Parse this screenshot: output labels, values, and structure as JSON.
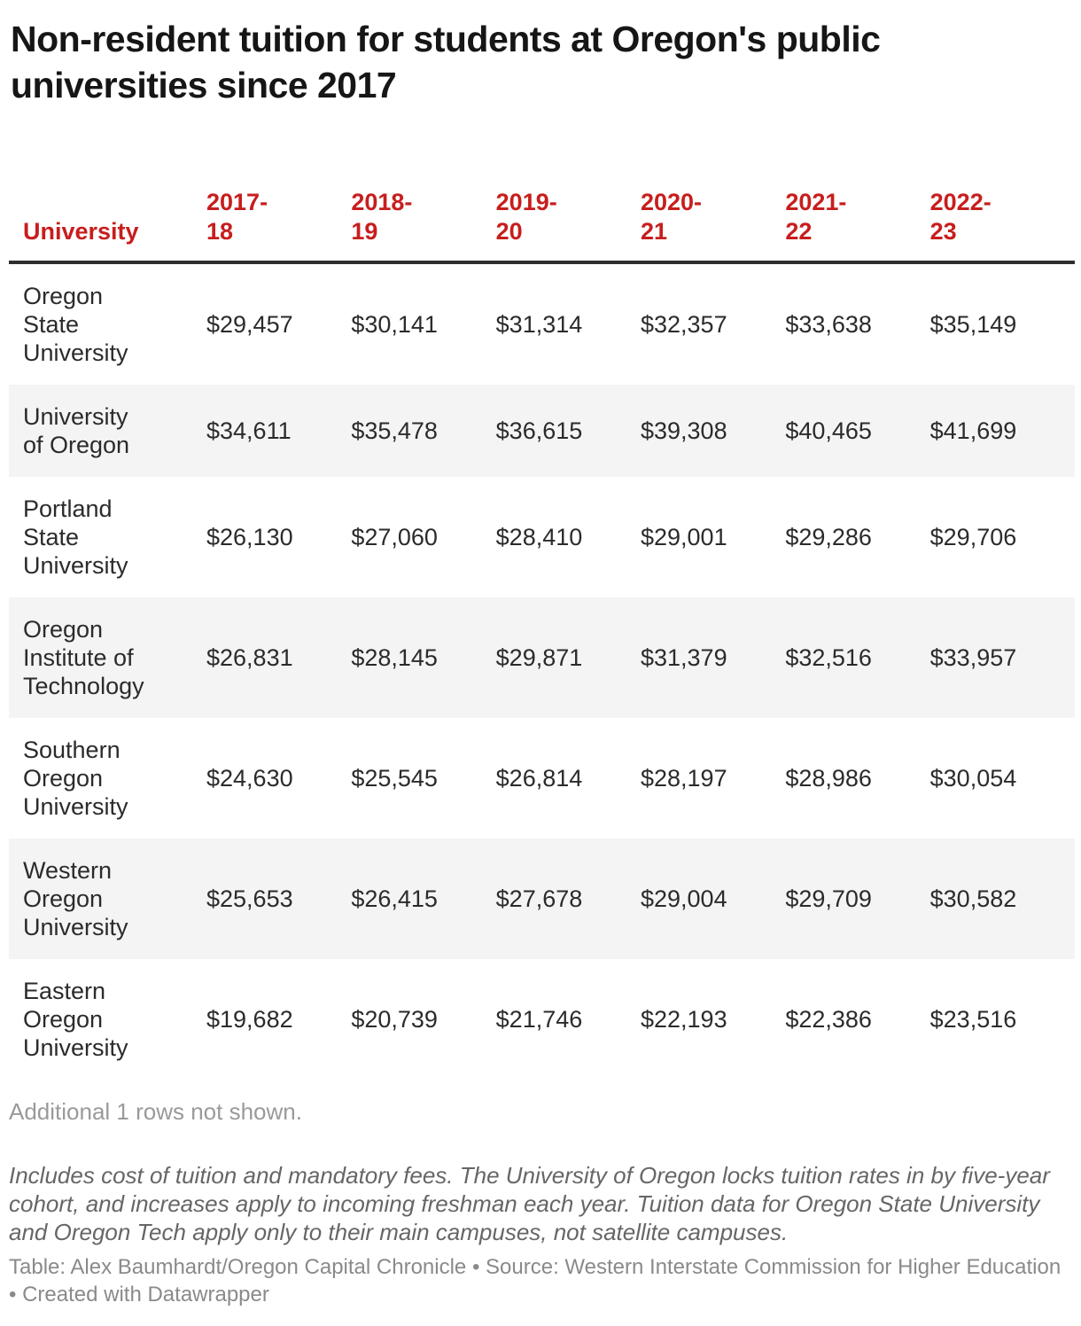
{
  "title": "Non-resident tuition for students at Oregon's public universities since 2017",
  "colors": {
    "accent_red": "#c71e1d",
    "header_rule": "#2e2e2e",
    "row_stripe": "#f4f4f4",
    "muted_gray": "#9a9a9a"
  },
  "table": {
    "header": {
      "university": "University",
      "years": [
        "2017-\n18",
        "2018-\n19",
        "2019-\n20",
        "2020-\n21",
        "2021-\n22",
        "2022-\n23"
      ]
    },
    "rows": [
      {
        "university": "Oregon\nState\nUniversity",
        "values": [
          "$29,457",
          "$30,141",
          "$31,314",
          "$32,357",
          "$33,638",
          "$35,149"
        ]
      },
      {
        "university": "University\nof Oregon",
        "values": [
          "$34,611",
          "$35,478",
          "$36,615",
          "$39,308",
          "$40,465",
          "$41,699"
        ]
      },
      {
        "university": "Portland\nState\nUniversity",
        "values": [
          "$26,130",
          "$27,060",
          "$28,410",
          "$29,001",
          "$29,286",
          "$29,706"
        ]
      },
      {
        "university": "Oregon\nInstitute of\nTechnology",
        "values": [
          "$26,831",
          "$28,145",
          "$29,871",
          "$31,379",
          "$32,516",
          "$33,957"
        ]
      },
      {
        "university": "Southern\nOregon\nUniversity",
        "values": [
          "$24,630",
          "$25,545",
          "$26,814",
          "$28,197",
          "$28,986",
          "$30,054"
        ]
      },
      {
        "university": "Western\nOregon\nUniversity",
        "values": [
          "$25,653",
          "$26,415",
          "$27,678",
          "$29,004",
          "$29,709",
          "$30,582"
        ]
      },
      {
        "university": "Eastern\nOregon\nUniversity",
        "values": [
          "$19,682",
          "$20,739",
          "$21,746",
          "$22,193",
          "$22,386",
          "$23,516"
        ]
      }
    ]
  },
  "footer": {
    "additional_rows": "Additional 1 rows not shown.",
    "note": "Includes cost of tuition and mandatory fees. The University of Oregon locks tuition rates in by five-year cohort, and increases apply to incoming freshman each year. Tuition data for Oregon State University and Oregon Tech apply only to their main campuses, not satellite campuses.",
    "credit": "Table: Alex Baumhardt/Oregon Capital Chronicle • Source: Western Interstate Commission for Higher Education  • Created with Datawrapper"
  },
  "chart_data": {
    "type": "table",
    "title": "Non-resident tuition for students at Oregon's public universities since 2017",
    "columns": [
      "University",
      "2017-18",
      "2018-19",
      "2019-20",
      "2020-21",
      "2021-22",
      "2022-23"
    ],
    "rows": [
      [
        "Oregon State University",
        29457,
        30141,
        31314,
        32357,
        33638,
        35149
      ],
      [
        "University of Oregon",
        34611,
        35478,
        36615,
        39308,
        40465,
        41699
      ],
      [
        "Portland State University",
        26130,
        27060,
        28410,
        29001,
        29286,
        29706
      ],
      [
        "Oregon Institute of Technology",
        26831,
        28145,
        29871,
        31379,
        32516,
        33957
      ],
      [
        "Southern Oregon University",
        24630,
        25545,
        26814,
        28197,
        28986,
        30054
      ],
      [
        "Western Oregon University",
        25653,
        26415,
        27678,
        29004,
        29709,
        30582
      ],
      [
        "Eastern Oregon University",
        19682,
        20739,
        21746,
        22193,
        22386,
        23516
      ]
    ],
    "units": "USD",
    "rows_not_shown": 1,
    "layout_hints": {
      "zebra_stripes": true,
      "header_color": "#c71e1d",
      "value_alignment": "left"
    }
  }
}
